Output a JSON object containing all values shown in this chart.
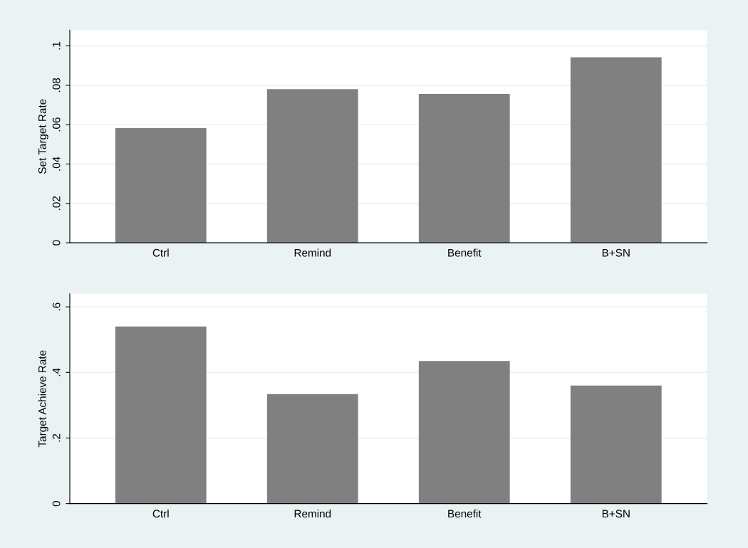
{
  "chart_data": [
    {
      "type": "bar",
      "ylabel": "Set Target Rate",
      "categories": [
        "Ctrl",
        "Remind",
        "Benefit",
        "B+SN"
      ],
      "values": [
        0.0582,
        0.078,
        0.0756,
        0.0942
      ],
      "color": "#808080",
      "ylim": [
        0,
        0.108
      ],
      "yticks": [
        {
          "value": 0,
          "label": "0"
        },
        {
          "value": 0.02,
          "label": ".02"
        },
        {
          "value": 0.04,
          "label": ".04"
        },
        {
          "value": 0.06,
          "label": ".06"
        },
        {
          "value": 0.08,
          "label": ".08"
        },
        {
          "value": 0.1,
          "label": ".1"
        }
      ],
      "grid": "y"
    },
    {
      "type": "bar",
      "ylabel": "Target Achieve Rate",
      "categories": [
        "Ctrl",
        "Remind",
        "Benefit",
        "B+SN"
      ],
      "values": [
        0.54,
        0.334,
        0.435,
        0.36
      ],
      "color": "#808080",
      "ylim": [
        0,
        0.64
      ],
      "yticks": [
        {
          "value": 0,
          "label": "0"
        },
        {
          "value": 0.2,
          "label": ".2"
        },
        {
          "value": 0.4,
          "label": ".4"
        },
        {
          "value": 0.6,
          "label": ".6"
        }
      ],
      "grid": "y"
    }
  ]
}
